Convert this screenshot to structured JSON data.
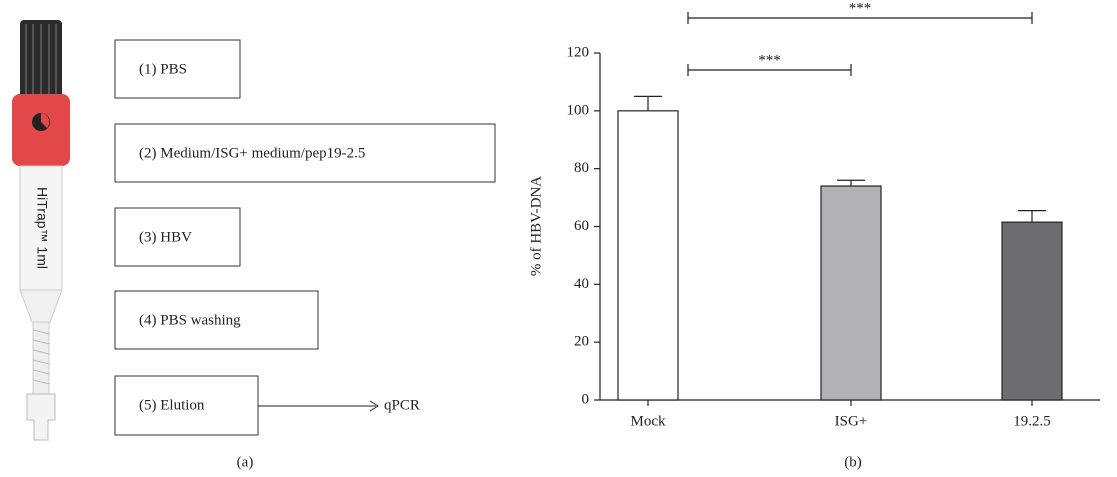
{
  "diagram": {
    "column_label": "HiTrap™ 1ml",
    "steps": [
      "(1) PBS",
      "(2) Medium/ISG+ medium/pep19-2.5",
      "(3) HBV",
      "(4) PBS washing",
      "(5) Elution"
    ],
    "output": "qPCR",
    "panel_label": "(a)"
  },
  "chart_data": {
    "type": "bar",
    "panel_label": "(b)",
    "ylabel": "% of HBV-DNA",
    "categories": [
      "Mock",
      "ISG+",
      "19.2.5"
    ],
    "values": [
      100,
      74,
      61.5
    ],
    "errors": [
      5,
      2,
      4
    ],
    "colors": [
      "#ffffff",
      "#b2b2b6",
      "#6d6d71"
    ],
    "ylim": [
      0,
      120
    ],
    "yticks": [
      0,
      20,
      40,
      60,
      80,
      100,
      120
    ],
    "annotations": [
      {
        "text": "***",
        "from": "Mock",
        "to": "ISG+"
      },
      {
        "text": "***",
        "from": "Mock",
        "to": "19.2.5"
      }
    ]
  }
}
